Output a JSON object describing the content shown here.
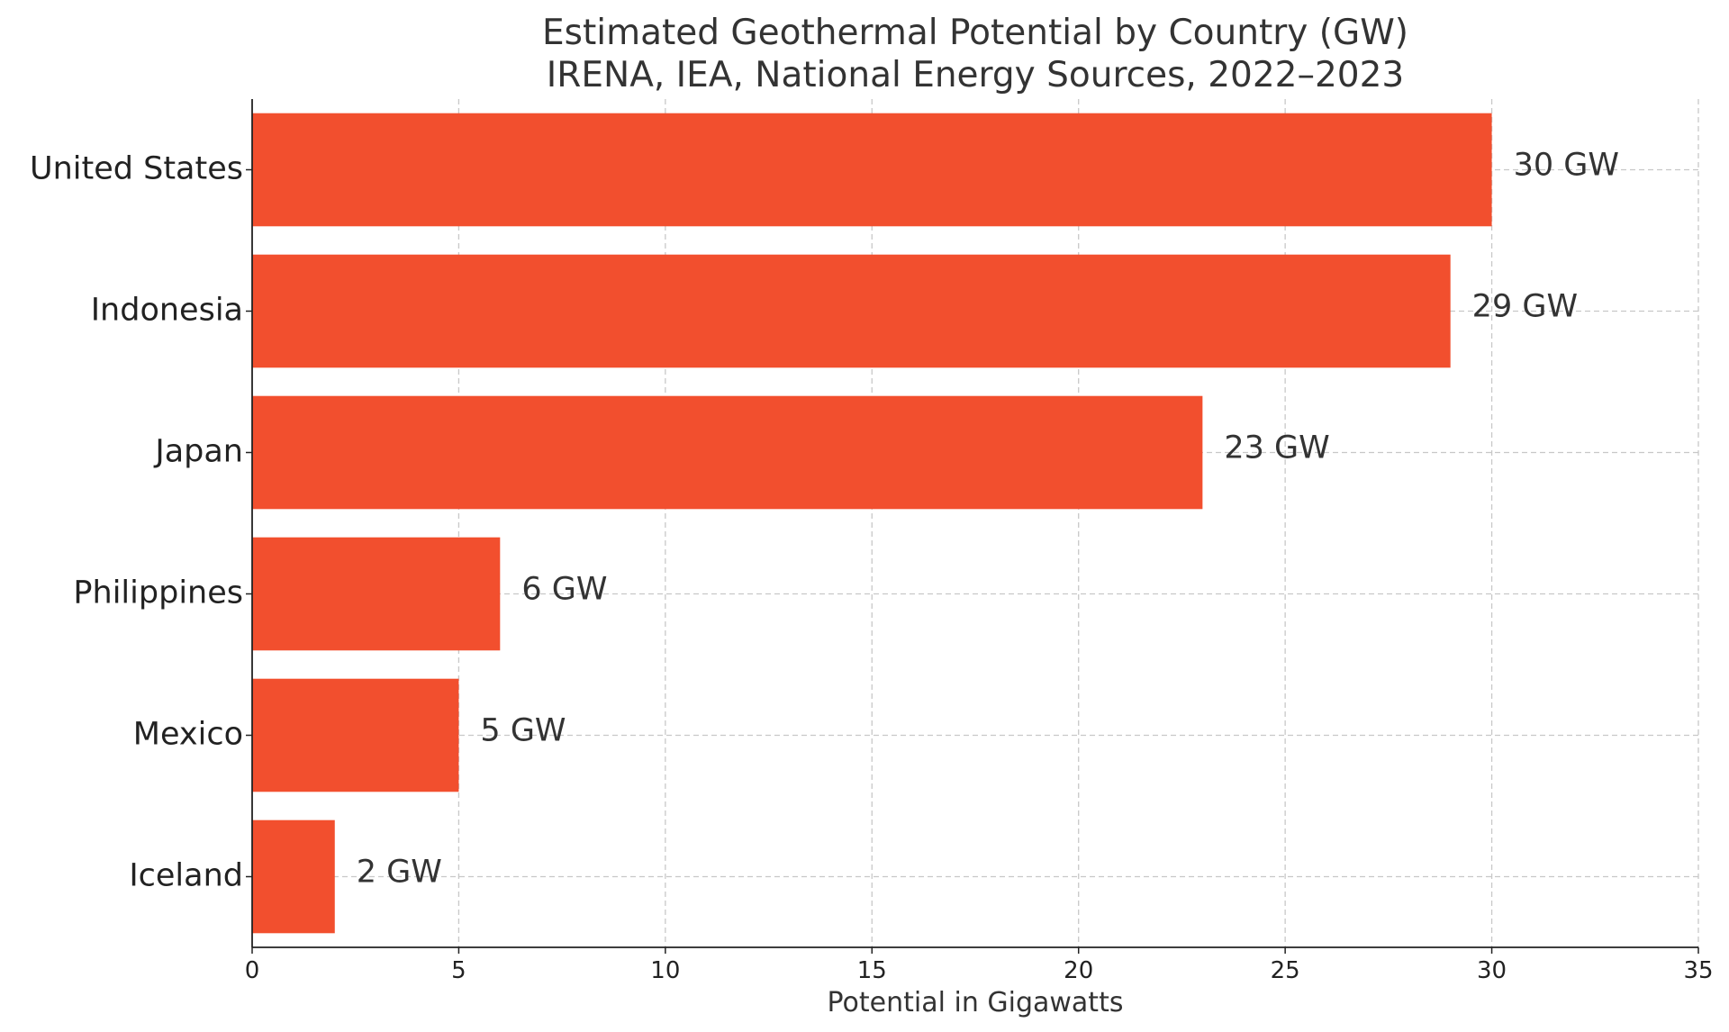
{
  "chart_data": {
    "type": "bar",
    "orientation": "horizontal",
    "title": "Estimated Geothermal Potential by Country (GW)",
    "subtitle": "IRENA, IEA, National Energy Sources, 2022–2023",
    "xlabel": "Potential in Gigawatts",
    "ylabel": "",
    "categories": [
      "United States",
      "Indonesia",
      "Japan",
      "Philippines",
      "Mexico",
      "Iceland"
    ],
    "values": [
      30,
      29,
      23,
      6,
      5,
      2
    ],
    "value_labels": [
      "30 GW",
      "29 GW",
      "23 GW",
      "6 GW",
      "5 GW",
      "2 GW"
    ],
    "xlim": [
      0,
      35
    ],
    "xticks": [
      0,
      5,
      10,
      15,
      20,
      25,
      30,
      35
    ],
    "xtick_labels": [
      "0",
      "5",
      "10",
      "15",
      "20",
      "25",
      "30",
      "35"
    ],
    "grid": true,
    "bar_color": "#f24f2e",
    "grid_color": "#c8c8c8",
    "axis_color": "#222222"
  }
}
